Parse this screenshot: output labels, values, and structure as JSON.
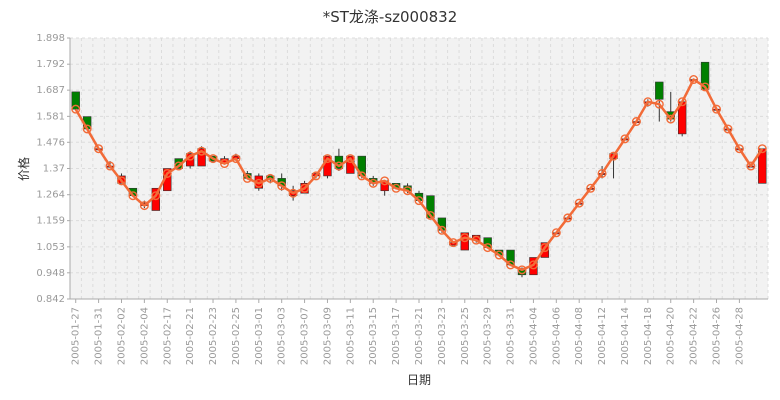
{
  "chart_data": {
    "type": "candlestick",
    "title": "*ST龙涤-sz000832",
    "xlabel": "日期",
    "ylabel": "价格",
    "ylim": [
      0.842,
      1.898
    ],
    "yticks": [
      "1.898",
      "1.792",
      "1.687",
      "1.581",
      "1.476",
      "1.37",
      "1.264",
      "1.159",
      "1.053",
      "0.948",
      "0.842"
    ],
    "grid": true,
    "colors": {
      "up": "#ff0000",
      "down": "#008000",
      "line": "#f26b38",
      "marker": "#f26b38",
      "grid": "#dcdcdc",
      "plot_bg": "#f2f2f2"
    },
    "x_tick_labels": [
      "2005-01-27",
      "2005-01-31",
      "2005-02-02",
      "2005-02-04",
      "2005-02-17",
      "2005-02-21",
      "2005-02-23",
      "2005-02-25",
      "2005-03-01",
      "2005-03-03",
      "2005-03-07",
      "2005-03-09",
      "2005-03-11",
      "2005-03-15",
      "2005-03-17",
      "2005-03-21",
      "2005-03-23",
      "2005-03-25",
      "2005-03-29",
      "2005-03-31",
      "2005-04-04",
      "2005-04-06",
      "2005-04-08",
      "2005-04-12",
      "2005-04-14",
      "2005-04-18",
      "2005-04-20",
      "2005-04-22",
      "2005-04-26",
      "2005-04-28"
    ],
    "series": [
      {
        "type": "candlestick",
        "fields": [
          "open",
          "close",
          "low",
          "high"
        ],
        "values": [
          [
            1.68,
            1.61,
            1.61,
            1.68
          ],
          [
            1.58,
            1.53,
            1.53,
            1.58
          ],
          [
            1.45,
            1.45,
            1.45,
            1.45
          ],
          [
            1.38,
            1.38,
            1.37,
            1.4
          ],
          [
            1.31,
            1.34,
            1.31,
            1.35
          ],
          [
            1.29,
            1.26,
            1.26,
            1.29
          ],
          [
            1.22,
            1.23,
            1.21,
            1.24
          ],
          [
            1.2,
            1.29,
            1.2,
            1.29
          ],
          [
            1.28,
            1.37,
            1.28,
            1.37
          ],
          [
            1.41,
            1.37,
            1.37,
            1.41
          ],
          [
            1.38,
            1.43,
            1.37,
            1.44
          ],
          [
            1.38,
            1.45,
            1.38,
            1.46
          ],
          [
            1.42,
            1.4,
            1.4,
            1.42
          ],
          [
            1.39,
            1.41,
            1.39,
            1.42
          ],
          [
            1.41,
            1.42,
            1.4,
            1.43
          ],
          [
            1.35,
            1.33,
            1.33,
            1.36
          ],
          [
            1.29,
            1.34,
            1.28,
            1.35
          ],
          [
            1.34,
            1.33,
            1.31,
            1.34
          ],
          [
            1.33,
            1.3,
            1.28,
            1.35
          ],
          [
            1.26,
            1.28,
            1.24,
            1.3
          ],
          [
            1.27,
            1.31,
            1.27,
            1.32
          ],
          [
            1.34,
            1.35,
            1.33,
            1.35
          ],
          [
            1.34,
            1.42,
            1.33,
            1.42
          ],
          [
            1.42,
            1.37,
            1.36,
            1.45
          ],
          [
            1.35,
            1.42,
            1.35,
            1.42
          ],
          [
            1.42,
            1.34,
            1.33,
            1.42
          ],
          [
            1.33,
            1.31,
            1.3,
            1.34
          ],
          [
            1.28,
            1.32,
            1.26,
            1.32
          ],
          [
            1.31,
            1.29,
            1.29,
            1.31
          ],
          [
            1.3,
            1.28,
            1.27,
            1.31
          ],
          [
            1.27,
            1.24,
            1.24,
            1.28
          ],
          [
            1.26,
            1.17,
            1.17,
            1.26
          ],
          [
            1.17,
            1.12,
            1.11,
            1.17
          ],
          [
            1.06,
            1.07,
            1.06,
            1.07
          ],
          [
            1.04,
            1.11,
            1.04,
            1.11
          ],
          [
            1.08,
            1.1,
            1.07,
            1.1
          ],
          [
            1.09,
            1.05,
            1.05,
            1.09
          ],
          [
            1.04,
            1.02,
            1.02,
            1.04
          ],
          [
            1.04,
            0.98,
            0.98,
            1.04
          ],
          [
            0.96,
            0.94,
            0.93,
            0.97
          ],
          [
            0.94,
            1.01,
            0.94,
            1.01
          ],
          [
            1.01,
            1.07,
            1.01,
            1.07
          ],
          [
            1.11,
            1.11,
            1.11,
            1.11
          ],
          [
            1.17,
            1.17,
            1.17,
            1.17
          ],
          [
            1.23,
            1.23,
            1.23,
            1.23
          ],
          [
            1.29,
            1.29,
            1.29,
            1.29
          ],
          [
            1.35,
            1.35,
            1.33,
            1.38
          ],
          [
            1.41,
            1.43,
            1.33,
            1.43
          ],
          [
            1.49,
            1.49,
            1.49,
            1.49
          ],
          [
            1.56,
            1.56,
            1.56,
            1.56
          ],
          [
            1.64,
            1.64,
            1.62,
            1.65
          ],
          [
            1.72,
            1.65,
            1.56,
            1.72
          ],
          [
            1.6,
            1.57,
            1.56,
            1.68
          ],
          [
            1.51,
            1.64,
            1.5,
            1.64
          ],
          [
            1.73,
            1.73,
            1.73,
            1.73
          ],
          [
            1.8,
            1.69,
            1.69,
            1.8
          ],
          [
            1.61,
            1.61,
            1.61,
            1.61
          ],
          [
            1.53,
            1.53,
            1.53,
            1.53
          ],
          [
            1.45,
            1.45,
            1.45,
            1.45
          ],
          [
            1.38,
            1.38,
            1.38,
            1.38
          ],
          [
            1.31,
            1.45,
            1.31,
            1.45
          ]
        ]
      },
      {
        "type": "line",
        "values": [
          1.61,
          1.53,
          1.45,
          1.38,
          1.32,
          1.26,
          1.22,
          1.26,
          1.35,
          1.38,
          1.42,
          1.44,
          1.41,
          1.39,
          1.41,
          1.33,
          1.31,
          1.33,
          1.3,
          1.27,
          1.29,
          1.34,
          1.41,
          1.38,
          1.41,
          1.34,
          1.31,
          1.32,
          1.29,
          1.28,
          1.24,
          1.18,
          1.12,
          1.07,
          1.09,
          1.08,
          1.05,
          1.02,
          0.98,
          0.96,
          0.98,
          1.05,
          1.11,
          1.17,
          1.23,
          1.29,
          1.35,
          1.42,
          1.49,
          1.56,
          1.64,
          1.63,
          1.57,
          1.64,
          1.73,
          1.7,
          1.61,
          1.53,
          1.45,
          1.38,
          1.45
        ]
      }
    ]
  }
}
